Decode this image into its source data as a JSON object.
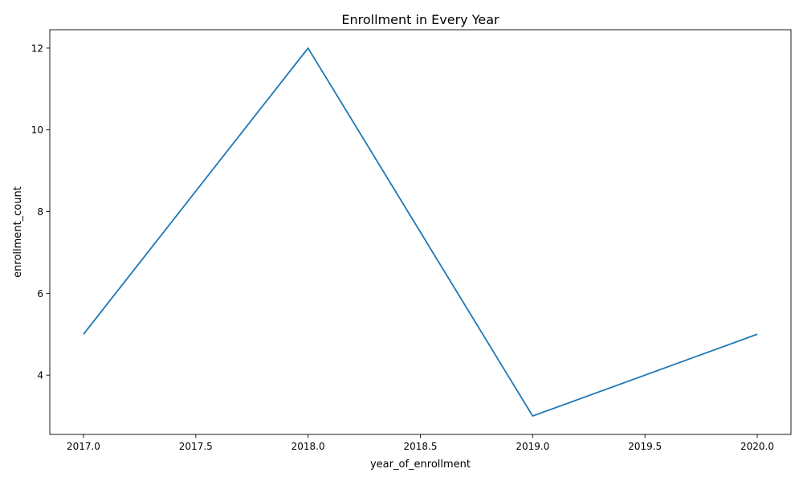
{
  "chart_data": {
    "type": "line",
    "title": "Enrollment in Every Year",
    "xlabel": "year_of_enrollment",
    "ylabel": "enrollment_count",
    "x": [
      2017,
      2018,
      2019,
      2020
    ],
    "series": [
      {
        "values": [
          5,
          12,
          3,
          5
        ],
        "color": "#1f77b4"
      }
    ],
    "xlim": [
      2016.85,
      2020.15
    ],
    "ylim": [
      2.55,
      12.45
    ],
    "xticks": [
      2017.0,
      2017.5,
      2018.0,
      2018.5,
      2019.0,
      2019.5,
      2020.0
    ],
    "xtick_labels": [
      "2017.0",
      "2017.5",
      "2018.0",
      "2018.5",
      "2019.0",
      "2019.5",
      "2020.0"
    ],
    "yticks": [
      4,
      6,
      8,
      10,
      12
    ],
    "ytick_labels": [
      "4",
      "6",
      "8",
      "10",
      "12"
    ],
    "grid": false,
    "legend": "none"
  }
}
